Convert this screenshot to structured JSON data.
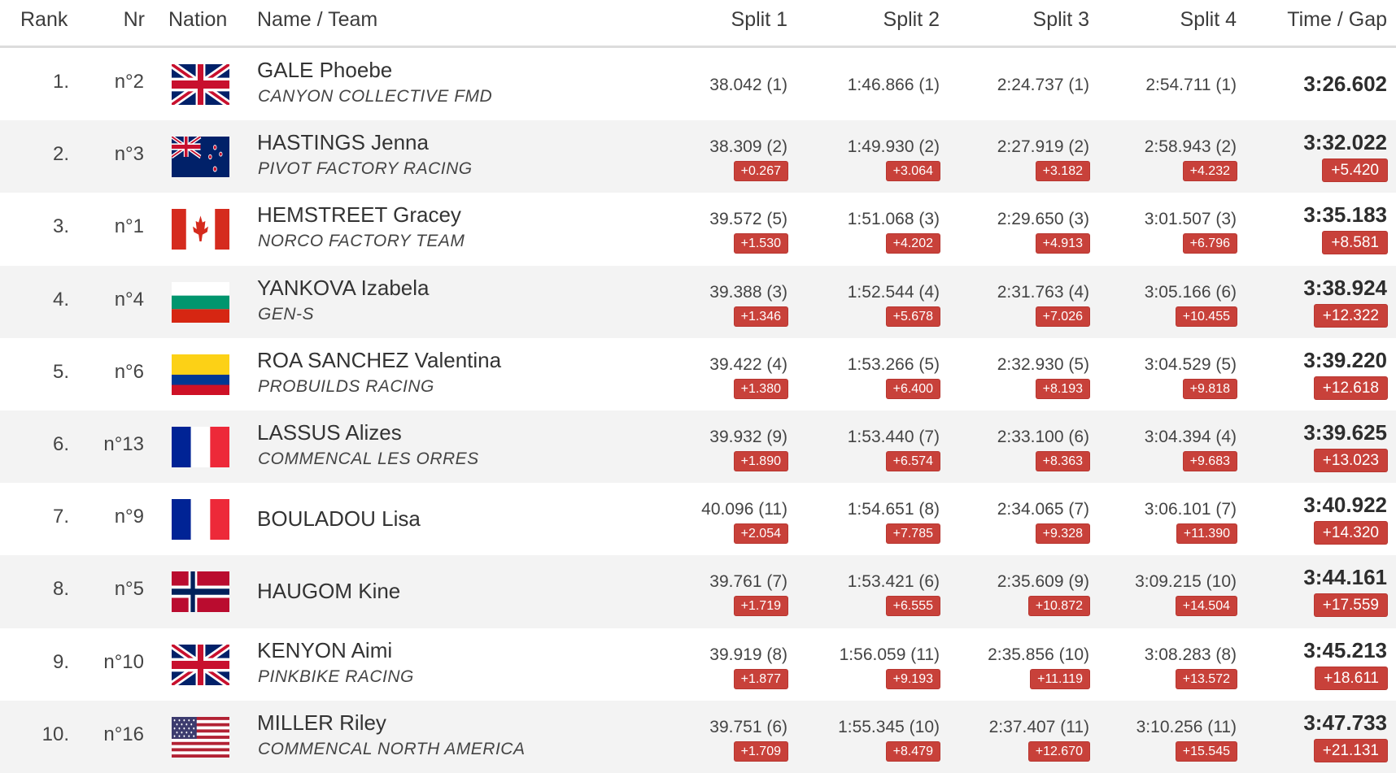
{
  "columns": {
    "rank": "Rank",
    "nr": "Nr",
    "nation": "Nation",
    "name_team": "Name / Team",
    "split1": "Split 1",
    "split2": "Split 2",
    "split3": "Split 3",
    "split4": "Split 4",
    "time_gap": "Time / Gap"
  },
  "rows": [
    {
      "rank": "1.",
      "nr": "n°2",
      "flag": "gb-flag-icon",
      "name": "GALE Phoebe",
      "team": "CANYON COLLECTIVE FMD",
      "splits": [
        "38.042 (1)",
        "1:46.866 (1)",
        "2:24.737 (1)",
        "2:54.711 (1)"
      ],
      "split_gaps": [
        "",
        "",
        "",
        ""
      ],
      "time": "3:26.602",
      "gap": ""
    },
    {
      "rank": "2.",
      "nr": "n°3",
      "flag": "nz-flag-icon",
      "name": "HASTINGS Jenna",
      "team": "PIVOT FACTORY RACING",
      "splits": [
        "38.309 (2)",
        "1:49.930 (2)",
        "2:27.919 (2)",
        "2:58.943 (2)"
      ],
      "split_gaps": [
        "+0.267",
        "+3.064",
        "+3.182",
        "+4.232"
      ],
      "time": "3:32.022",
      "gap": "+5.420"
    },
    {
      "rank": "3.",
      "nr": "n°1",
      "flag": "ca-flag-icon",
      "name": "HEMSTREET Gracey",
      "team": "NORCO FACTORY TEAM",
      "splits": [
        "39.572 (5)",
        "1:51.068 (3)",
        "2:29.650 (3)",
        "3:01.507 (3)"
      ],
      "split_gaps": [
        "+1.530",
        "+4.202",
        "+4.913",
        "+6.796"
      ],
      "time": "3:35.183",
      "gap": "+8.581"
    },
    {
      "rank": "4.",
      "nr": "n°4",
      "flag": "bg-flag-icon",
      "name": "YANKOVA Izabela",
      "team": "GEN-S",
      "splits": [
        "39.388 (3)",
        "1:52.544 (4)",
        "2:31.763 (4)",
        "3:05.166 (6)"
      ],
      "split_gaps": [
        "+1.346",
        "+5.678",
        "+7.026",
        "+10.455"
      ],
      "time": "3:38.924",
      "gap": "+12.322"
    },
    {
      "rank": "5.",
      "nr": "n°6",
      "flag": "co-flag-icon",
      "name": "ROA SANCHEZ Valentina",
      "team": "PROBUILDS RACING",
      "splits": [
        "39.422 (4)",
        "1:53.266 (5)",
        "2:32.930 (5)",
        "3:04.529 (5)"
      ],
      "split_gaps": [
        "+1.380",
        "+6.400",
        "+8.193",
        "+9.818"
      ],
      "time": "3:39.220",
      "gap": "+12.618"
    },
    {
      "rank": "6.",
      "nr": "n°13",
      "flag": "fr-flag-icon",
      "name": "LASSUS Alizes",
      "team": "COMMENCAL LES ORRES",
      "splits": [
        "39.932 (9)",
        "1:53.440 (7)",
        "2:33.100 (6)",
        "3:04.394 (4)"
      ],
      "split_gaps": [
        "+1.890",
        "+6.574",
        "+8.363",
        "+9.683"
      ],
      "time": "3:39.625",
      "gap": "+13.023"
    },
    {
      "rank": "7.",
      "nr": "n°9",
      "flag": "fr-flag-icon",
      "name": "BOULADOU Lisa",
      "team": "",
      "splits": [
        "40.096 (11)",
        "1:54.651 (8)",
        "2:34.065 (7)",
        "3:06.101 (7)"
      ],
      "split_gaps": [
        "+2.054",
        "+7.785",
        "+9.328",
        "+11.390"
      ],
      "time": "3:40.922",
      "gap": "+14.320"
    },
    {
      "rank": "8.",
      "nr": "n°5",
      "flag": "no-flag-icon",
      "name": "HAUGOM Kine",
      "team": "",
      "splits": [
        "39.761 (7)",
        "1:53.421 (6)",
        "2:35.609 (9)",
        "3:09.215 (10)"
      ],
      "split_gaps": [
        "+1.719",
        "+6.555",
        "+10.872",
        "+14.504"
      ],
      "time": "3:44.161",
      "gap": "+17.559"
    },
    {
      "rank": "9.",
      "nr": "n°10",
      "flag": "gb-flag-icon",
      "name": "KENYON Aimi",
      "team": "PINKBIKE RACING",
      "splits": [
        "39.919 (8)",
        "1:56.059 (11)",
        "2:35.856 (10)",
        "3:08.283 (8)"
      ],
      "split_gaps": [
        "+1.877",
        "+9.193",
        "+11.119",
        "+13.572"
      ],
      "time": "3:45.213",
      "gap": "+18.611"
    },
    {
      "rank": "10.",
      "nr": "n°16",
      "flag": "us-flag-icon",
      "name": "MILLER Riley",
      "team": "COMMENCAL NORTH AMERICA",
      "splits": [
        "39.751 (6)",
        "1:55.345 (10)",
        "2:37.407 (11)",
        "3:10.256 (11)"
      ],
      "split_gaps": [
        "+1.709",
        "+8.479",
        "+12.670",
        "+15.545"
      ],
      "time": "3:47.733",
      "gap": "+21.131"
    }
  ]
}
